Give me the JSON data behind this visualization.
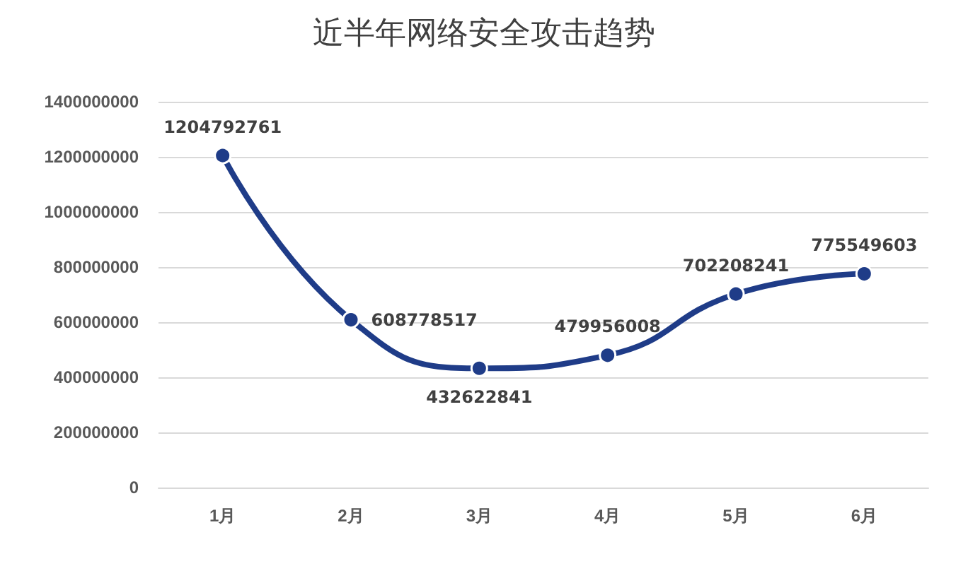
{
  "chart_data": {
    "type": "line",
    "title": "近半年网络安全攻击趋势",
    "categories": [
      "1月",
      "2月",
      "3月",
      "4月",
      "5月",
      "6月"
    ],
    "series": [
      {
        "color": "#1f3c88",
        "values": [
          1204792761,
          608778517,
          432622841,
          479956008,
          702208241,
          775549603
        ]
      }
    ],
    "ylim": [
      0,
      1400000000
    ],
    "yticks": [
      0,
      200000000,
      400000000,
      600000000,
      800000000,
      1000000000,
      1200000000,
      1400000000
    ],
    "grid": "y",
    "marker": "circle",
    "line_style": "solid",
    "data_labels": true
  }
}
